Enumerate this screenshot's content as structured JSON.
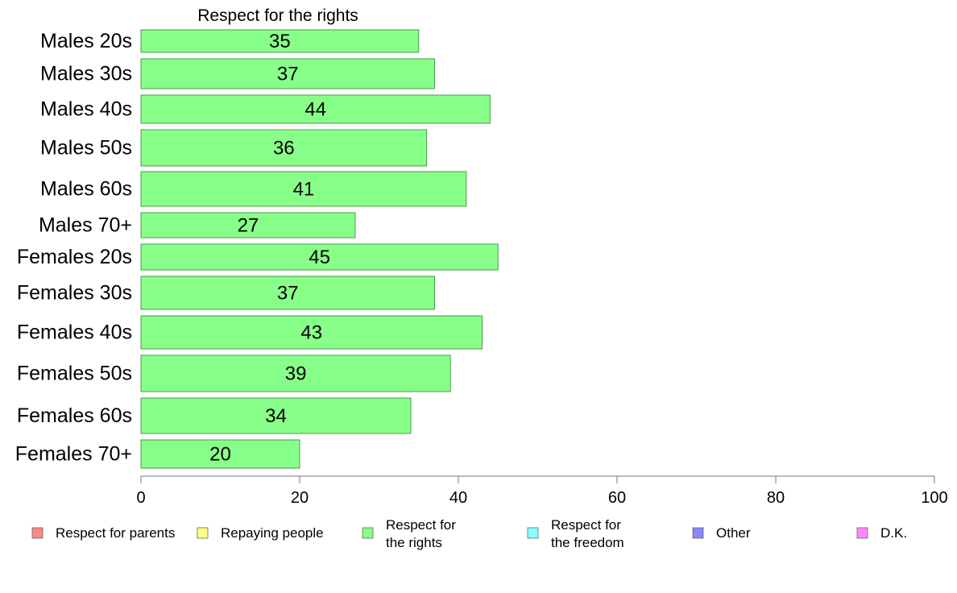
{
  "chart_data": {
    "type": "bar",
    "orientation": "horizontal",
    "title": "Respect for the rights",
    "categories": [
      "Males 20s",
      "Males 30s",
      "Males 40s",
      "Males 50s",
      "Males 60s",
      "Males 70+",
      "Females 20s",
      "Females 30s",
      "Females 40s",
      "Females 50s",
      "Females 60s",
      "Females 70+"
    ],
    "series": [
      {
        "name": "Respect for the rights",
        "values": [
          35,
          37,
          44,
          36,
          41,
          27,
          45,
          37,
          43,
          39,
          34,
          20
        ]
      }
    ],
    "xlim": [
      0,
      100
    ],
    "xticks": [
      "0",
      "20",
      "40",
      "60",
      "80",
      "100"
    ],
    "grid": false,
    "bar_color": "#88ff88",
    "bar_stroke": "#4a9a4a",
    "legend": {
      "placement": "bottom",
      "items": [
        {
          "label_lines": [
            "Respect for parents"
          ],
          "color": "#ff8888"
        },
        {
          "label_lines": [
            "Repaying people"
          ],
          "color": "#ffff88"
        },
        {
          "label_lines": [
            "Respect for",
            "the rights"
          ],
          "color": "#88ff88"
        },
        {
          "label_lines": [
            "Respect for",
            "the freedom"
          ],
          "color": "#88ffff"
        },
        {
          "label_lines": [
            "Other"
          ],
          "color": "#8888ff"
        },
        {
          "label_lines": [
            "D.K."
          ],
          "color": "#ff88ff"
        }
      ]
    }
  }
}
